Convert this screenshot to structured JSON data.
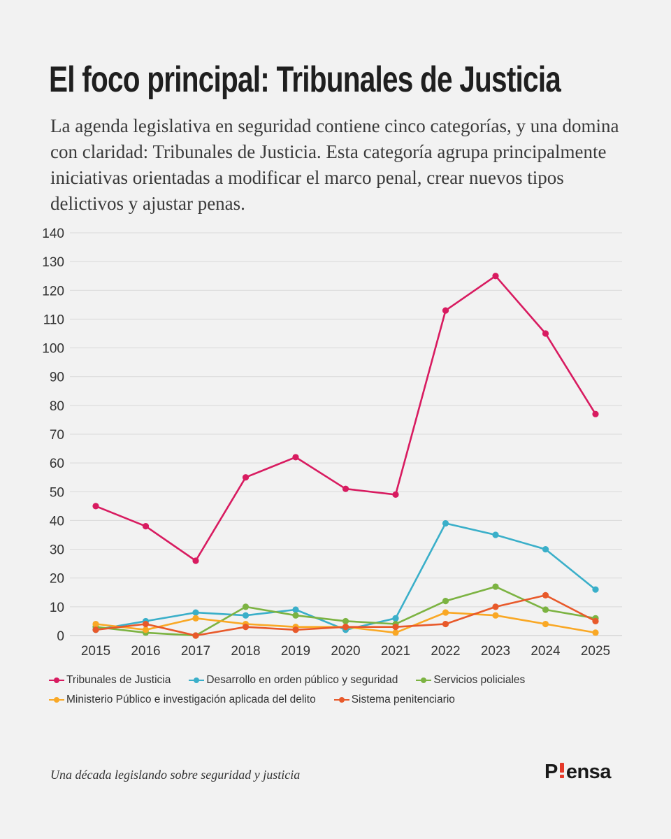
{
  "header": {
    "title": "El foco principal: Tribunales de Justicia",
    "subtitle": "La agenda legislativa en seguridad contiene cinco categorías, y una domina con claridad: Tribunales de Justicia. Esta categoría agrupa principalmente iniciativas orientadas a modificar el marco penal, crear nuevos tipos delictivos y ajustar penas."
  },
  "chart_data": {
    "type": "line",
    "x": [
      "2015",
      "2016",
      "2017",
      "2018",
      "2019",
      "2020",
      "2021",
      "2022",
      "2023",
      "2024",
      "2025"
    ],
    "ylim": [
      0,
      140
    ],
    "yticks": [
      0,
      10,
      20,
      30,
      40,
      50,
      60,
      70,
      80,
      90,
      100,
      110,
      120,
      130,
      140
    ],
    "grid": true,
    "legend_position": "bottom",
    "series": [
      {
        "name": "Tribunales de Justicia",
        "color": "#d81b60",
        "values": [
          45,
          38,
          26,
          55,
          62,
          51,
          49,
          113,
          125,
          105,
          77
        ]
      },
      {
        "name": "Desarrollo en orden público y seguridad",
        "color": "#3aafc9",
        "values": [
          2,
          5,
          8,
          7,
          9,
          2,
          6,
          39,
          35,
          30,
          16
        ]
      },
      {
        "name": "Servicios policiales",
        "color": "#7cb342",
        "values": [
          3,
          1,
          0,
          10,
          7,
          5,
          4,
          12,
          17,
          9,
          6
        ]
      },
      {
        "name": "Ministerio Público e investigación aplicada del delito",
        "color": "#f9a825",
        "values": [
          4,
          2,
          6,
          4,
          3,
          3,
          1,
          8,
          7,
          4,
          1
        ]
      },
      {
        "name": "Sistema penitenciario",
        "color": "#e8592a",
        "values": [
          2,
          4,
          0,
          3,
          2,
          3,
          3,
          4,
          10,
          14,
          5
        ]
      }
    ]
  },
  "footer": {
    "note": "Una década legislando sobre seguridad y justicia",
    "brand": {
      "pre": "P",
      "post": "ensa",
      "accent_color": "#e63a2a"
    }
  }
}
